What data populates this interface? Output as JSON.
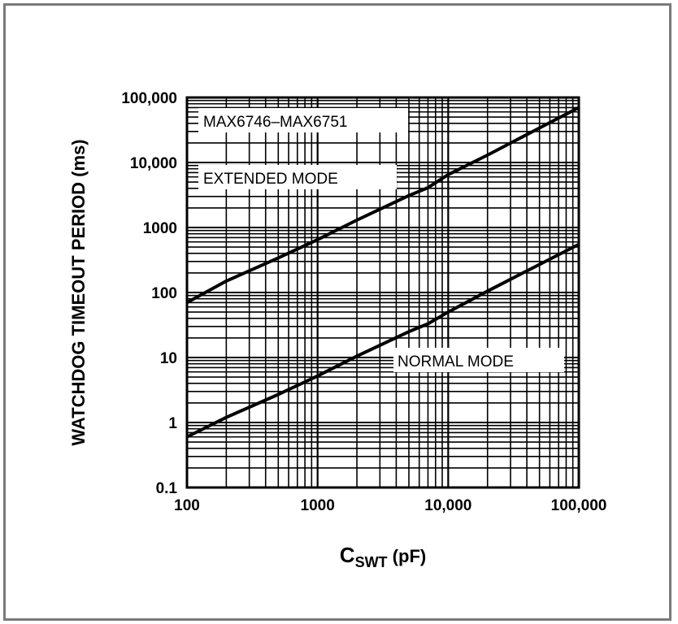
{
  "chart_data": {
    "type": "line",
    "xscale": "log",
    "yscale": "log",
    "xlim": [
      100,
      100000
    ],
    "ylim": [
      0.1,
      100000
    ],
    "x_ticks": [
      100,
      1000,
      10000,
      100000
    ],
    "x_tick_labels": [
      "100",
      "1000",
      "10,000",
      "100,000"
    ],
    "y_ticks": [
      0.1,
      1,
      10,
      100,
      1000,
      10000,
      100000
    ],
    "y_tick_labels": [
      "0.1",
      "1",
      "10",
      "100",
      "1000",
      "10,000",
      "100,000"
    ],
    "xlabel_main": "C",
    "xlabel_sub": "SWT",
    "xlabel_unit": " (pF)",
    "ylabel": "WATCHDOG TIMEOUT PERIOD (ms)",
    "grid": true,
    "annotations": [
      "MAX6746–MAX6751",
      "EXTENDED MODE",
      "NORMAL MODE"
    ],
    "series": [
      {
        "x": [
          100,
          200,
          500,
          1000,
          2000,
          5000,
          7000,
          10000,
          20000,
          50000,
          100000
        ],
        "y": [
          70,
          150,
          340,
          650,
          1300,
          3100,
          4100,
          6500,
          13000,
          34000,
          70000
        ]
      },
      {
        "x": [
          100,
          200,
          500,
          1000,
          2000,
          5000,
          7000,
          10000,
          20000,
          50000,
          100000
        ],
        "y": [
          0.6,
          1.2,
          2.7,
          5.2,
          10.5,
          25,
          33,
          50,
          105,
          270,
          550
        ]
      }
    ],
    "colors": {
      "line": "#000000",
      "grid": "#000000",
      "background": "#ffffff",
      "frame": "#7a7a7a"
    }
  }
}
